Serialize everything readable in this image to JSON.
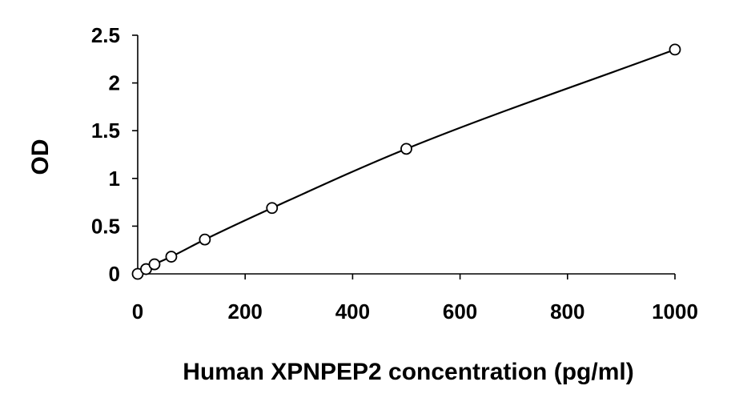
{
  "chart_data": {
    "type": "scatter",
    "title": "",
    "xlabel": "Human XPNPEP2 concentration (pg/ml)",
    "ylabel": "OD",
    "xlim": [
      0,
      1000
    ],
    "ylim": [
      0,
      2.5
    ],
    "x_ticks": [
      "0",
      "200",
      "400",
      "600",
      "800",
      "1000"
    ],
    "y_ticks": [
      "0",
      "0.5",
      "1",
      "1.5",
      "2",
      "2.5"
    ],
    "grid": false,
    "legend": "none",
    "series": [
      {
        "x": [
          0,
          15.6,
          31.25,
          62.5,
          125,
          250,
          500,
          1000
        ],
        "y": [
          0.0,
          0.05,
          0.1,
          0.18,
          0.36,
          0.69,
          1.31,
          2.35
        ]
      }
    ],
    "trendline": "smooth curve through points",
    "marker_style": "open-circle",
    "color": "#000000"
  }
}
